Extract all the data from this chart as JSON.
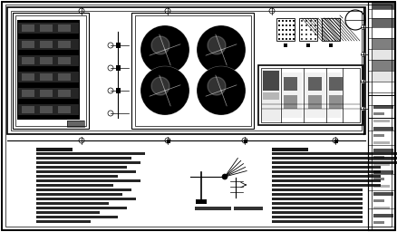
{
  "bg_color": "#ffffff",
  "line_color": "#000000",
  "fig_w": 4.38,
  "fig_h": 2.56,
  "dpi": 100
}
